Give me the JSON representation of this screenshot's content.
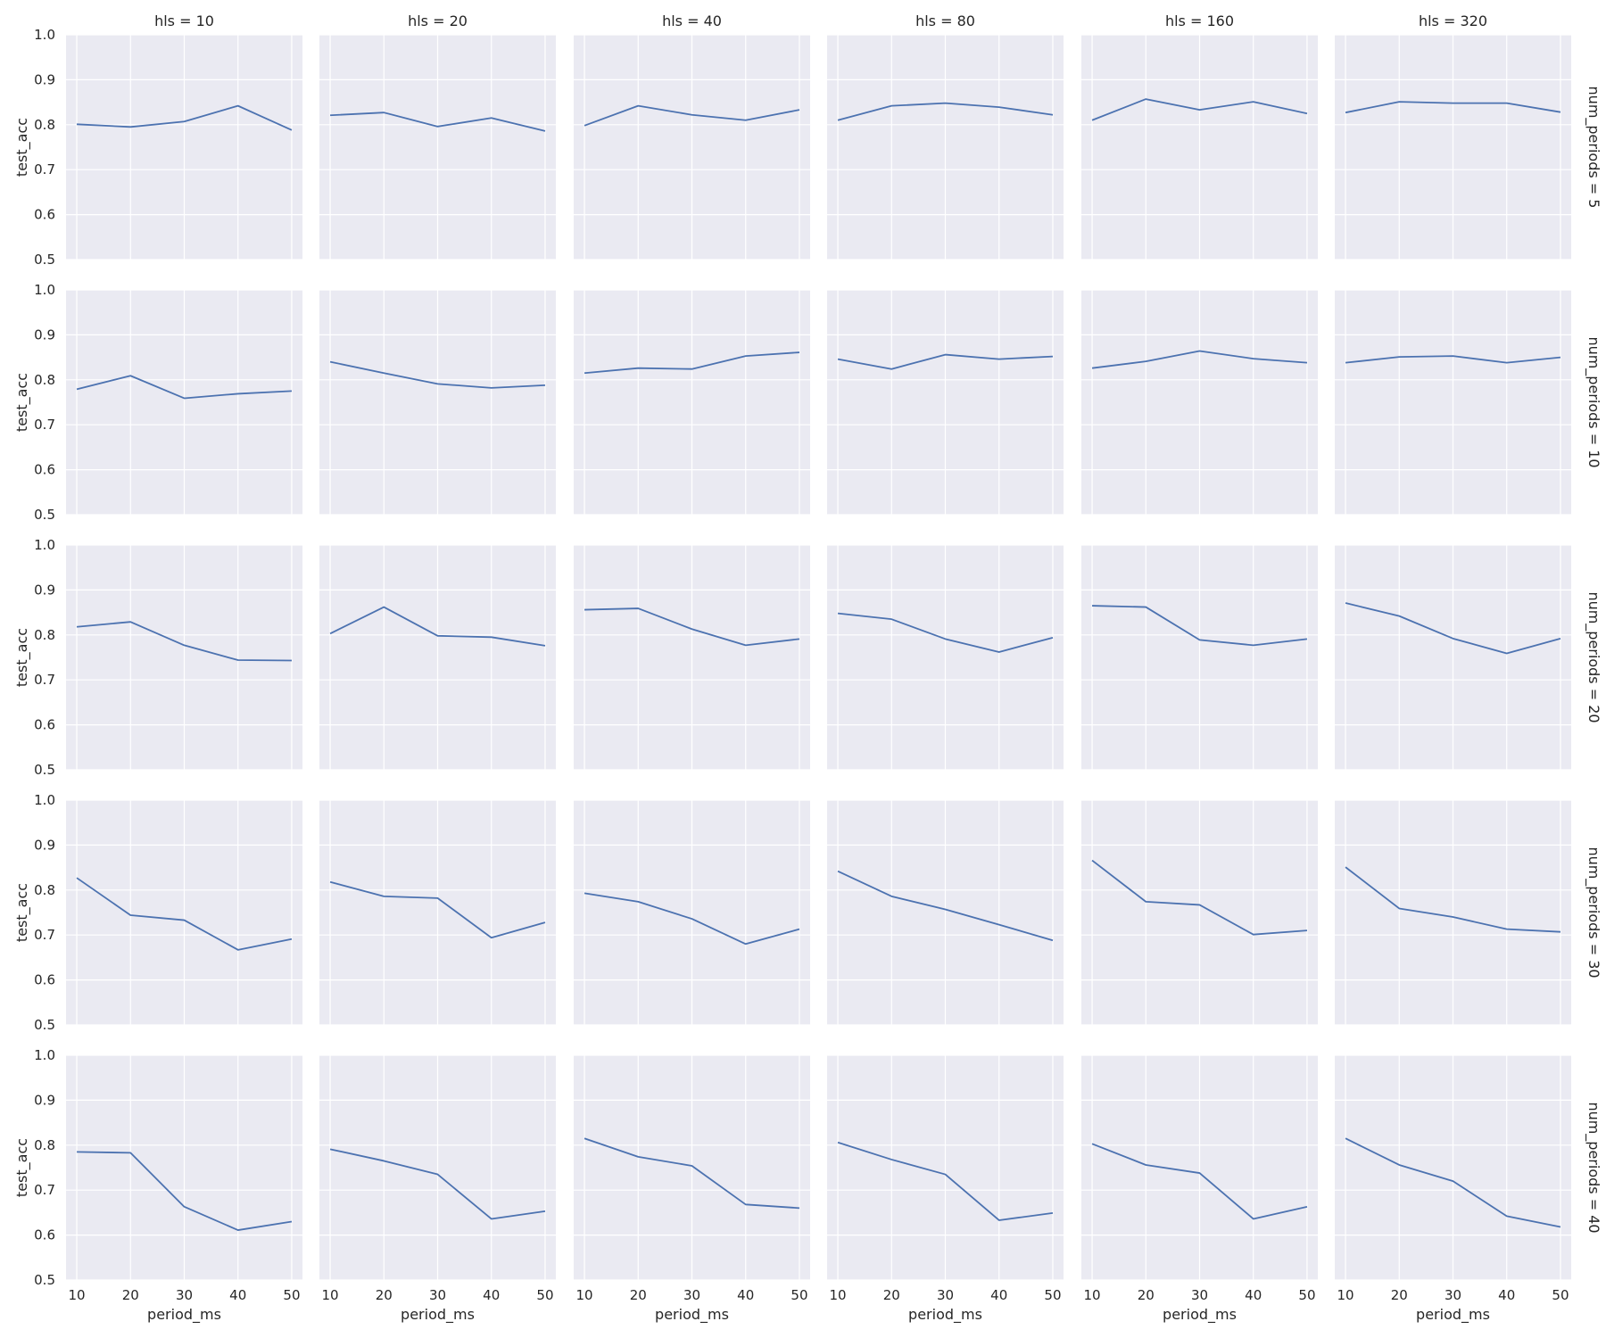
{
  "chart_data": {
    "type": "line",
    "layout": "facet-grid",
    "xlabel": "period_ms",
    "ylabel": "test_acc",
    "x": [
      10,
      20,
      30,
      40,
      50
    ],
    "xticks": [
      "10",
      "20",
      "30",
      "40",
      "50"
    ],
    "xlim": [
      8,
      52
    ],
    "ylim": [
      0.5,
      1.0
    ],
    "yticks": [
      "0.5",
      "0.6",
      "0.7",
      "0.8",
      "0.9",
      "1.0"
    ],
    "grid": true,
    "series_color": "#4c72b0",
    "panel_color": "#eaeaf2",
    "col_titles": [
      "hls = 10",
      "hls = 20",
      "hls = 40",
      "hls = 80",
      "hls = 160",
      "hls = 320"
    ],
    "row_titles": [
      "num_periods = 5",
      "num_periods = 10",
      "num_periods = 20",
      "num_periods = 30",
      "num_periods = 40"
    ],
    "values": [
      [
        [
          0.801,
          0.795,
          0.807,
          0.842,
          0.788
        ],
        [
          0.821,
          0.827,
          0.796,
          0.815,
          0.786
        ],
        [
          0.798,
          0.842,
          0.822,
          0.81,
          0.833
        ],
        [
          0.81,
          0.842,
          0.848,
          0.839,
          0.822
        ],
        [
          0.81,
          0.857,
          0.833,
          0.851,
          0.825
        ],
        [
          0.827,
          0.851,
          0.848,
          0.848,
          0.828
        ]
      ],
      [
        [
          0.779,
          0.809,
          0.759,
          0.769,
          0.775
        ],
        [
          0.84,
          0.815,
          0.791,
          0.782,
          0.788
        ],
        [
          0.815,
          0.826,
          0.824,
          0.853,
          0.861
        ],
        [
          0.846,
          0.824,
          0.856,
          0.846,
          0.852
        ],
        [
          0.826,
          0.841,
          0.864,
          0.847,
          0.838
        ],
        [
          0.838,
          0.851,
          0.853,
          0.838,
          0.85
        ]
      ],
      [
        [
          0.818,
          0.829,
          0.777,
          0.744,
          0.743
        ],
        [
          0.803,
          0.862,
          0.798,
          0.795,
          0.776
        ],
        [
          0.856,
          0.859,
          0.813,
          0.777,
          0.791
        ],
        [
          0.848,
          0.835,
          0.791,
          0.762,
          0.794
        ],
        [
          0.865,
          0.862,
          0.789,
          0.777,
          0.791
        ],
        [
          0.871,
          0.842,
          0.792,
          0.759,
          0.792
        ]
      ],
      [
        [
          0.827,
          0.744,
          0.733,
          0.667,
          0.691
        ],
        [
          0.818,
          0.786,
          0.782,
          0.694,
          0.728
        ],
        [
          0.793,
          0.774,
          0.736,
          0.68,
          0.713
        ],
        [
          0.842,
          0.786,
          0.757,
          0.723,
          0.688
        ],
        [
          0.866,
          0.774,
          0.767,
          0.701,
          0.71
        ],
        [
          0.851,
          0.759,
          0.74,
          0.713,
          0.707
        ]
      ],
      [
        [
          0.785,
          0.783,
          0.663,
          0.611,
          0.63
        ],
        [
          0.791,
          0.765,
          0.735,
          0.636,
          0.653
        ],
        [
          0.815,
          0.774,
          0.754,
          0.668,
          0.66
        ],
        [
          0.806,
          0.768,
          0.735,
          0.633,
          0.649
        ],
        [
          0.803,
          0.756,
          0.738,
          0.636,
          0.663
        ],
        [
          0.815,
          0.756,
          0.72,
          0.642,
          0.618
        ]
      ]
    ]
  }
}
